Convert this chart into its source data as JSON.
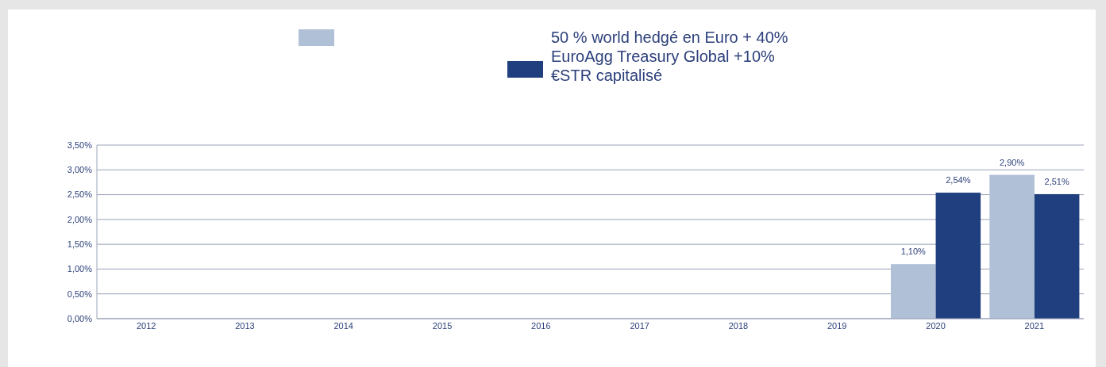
{
  "chart_data": {
    "type": "bar",
    "categories": [
      "2012",
      "2013",
      "2014",
      "2015",
      "2016",
      "2017",
      "2018",
      "2019",
      "2020",
      "2021"
    ],
    "series": [
      {
        "color": "#b0c0d6",
        "values": [
          null,
          null,
          null,
          null,
          null,
          null,
          null,
          null,
          1.1,
          2.9
        ],
        "value_labels": [
          null,
          null,
          null,
          null,
          null,
          null,
          null,
          null,
          "1,10%",
          "2,90%"
        ]
      },
      {
        "name": "50 % world hedgé en Euro + 40% EuroAgg Treasury Global  +10% €STR capitalisé",
        "color": "#203f7f",
        "values": [
          null,
          null,
          null,
          null,
          null,
          null,
          null,
          null,
          2.54,
          2.51
        ],
        "value_labels": [
          null,
          null,
          null,
          null,
          null,
          null,
          null,
          null,
          "2,54%",
          "2,51%"
        ]
      }
    ],
    "ylim": [
      0,
      3.5
    ],
    "yticks": [
      {
        "value": 0,
        "label": "0,00%"
      },
      {
        "value": 0.5,
        "label": "0,50%"
      },
      {
        "value": 1,
        "label": "1,00%"
      },
      {
        "value": 1.5,
        "label": "1,50%"
      },
      {
        "value": 2,
        "label": "2,00%"
      },
      {
        "value": 2.5,
        "label": "2,50%"
      },
      {
        "value": 3,
        "label": "3,00%"
      },
      {
        "value": 3.5,
        "label": "3,50%"
      }
    ],
    "grid": "y",
    "legend": "top"
  }
}
